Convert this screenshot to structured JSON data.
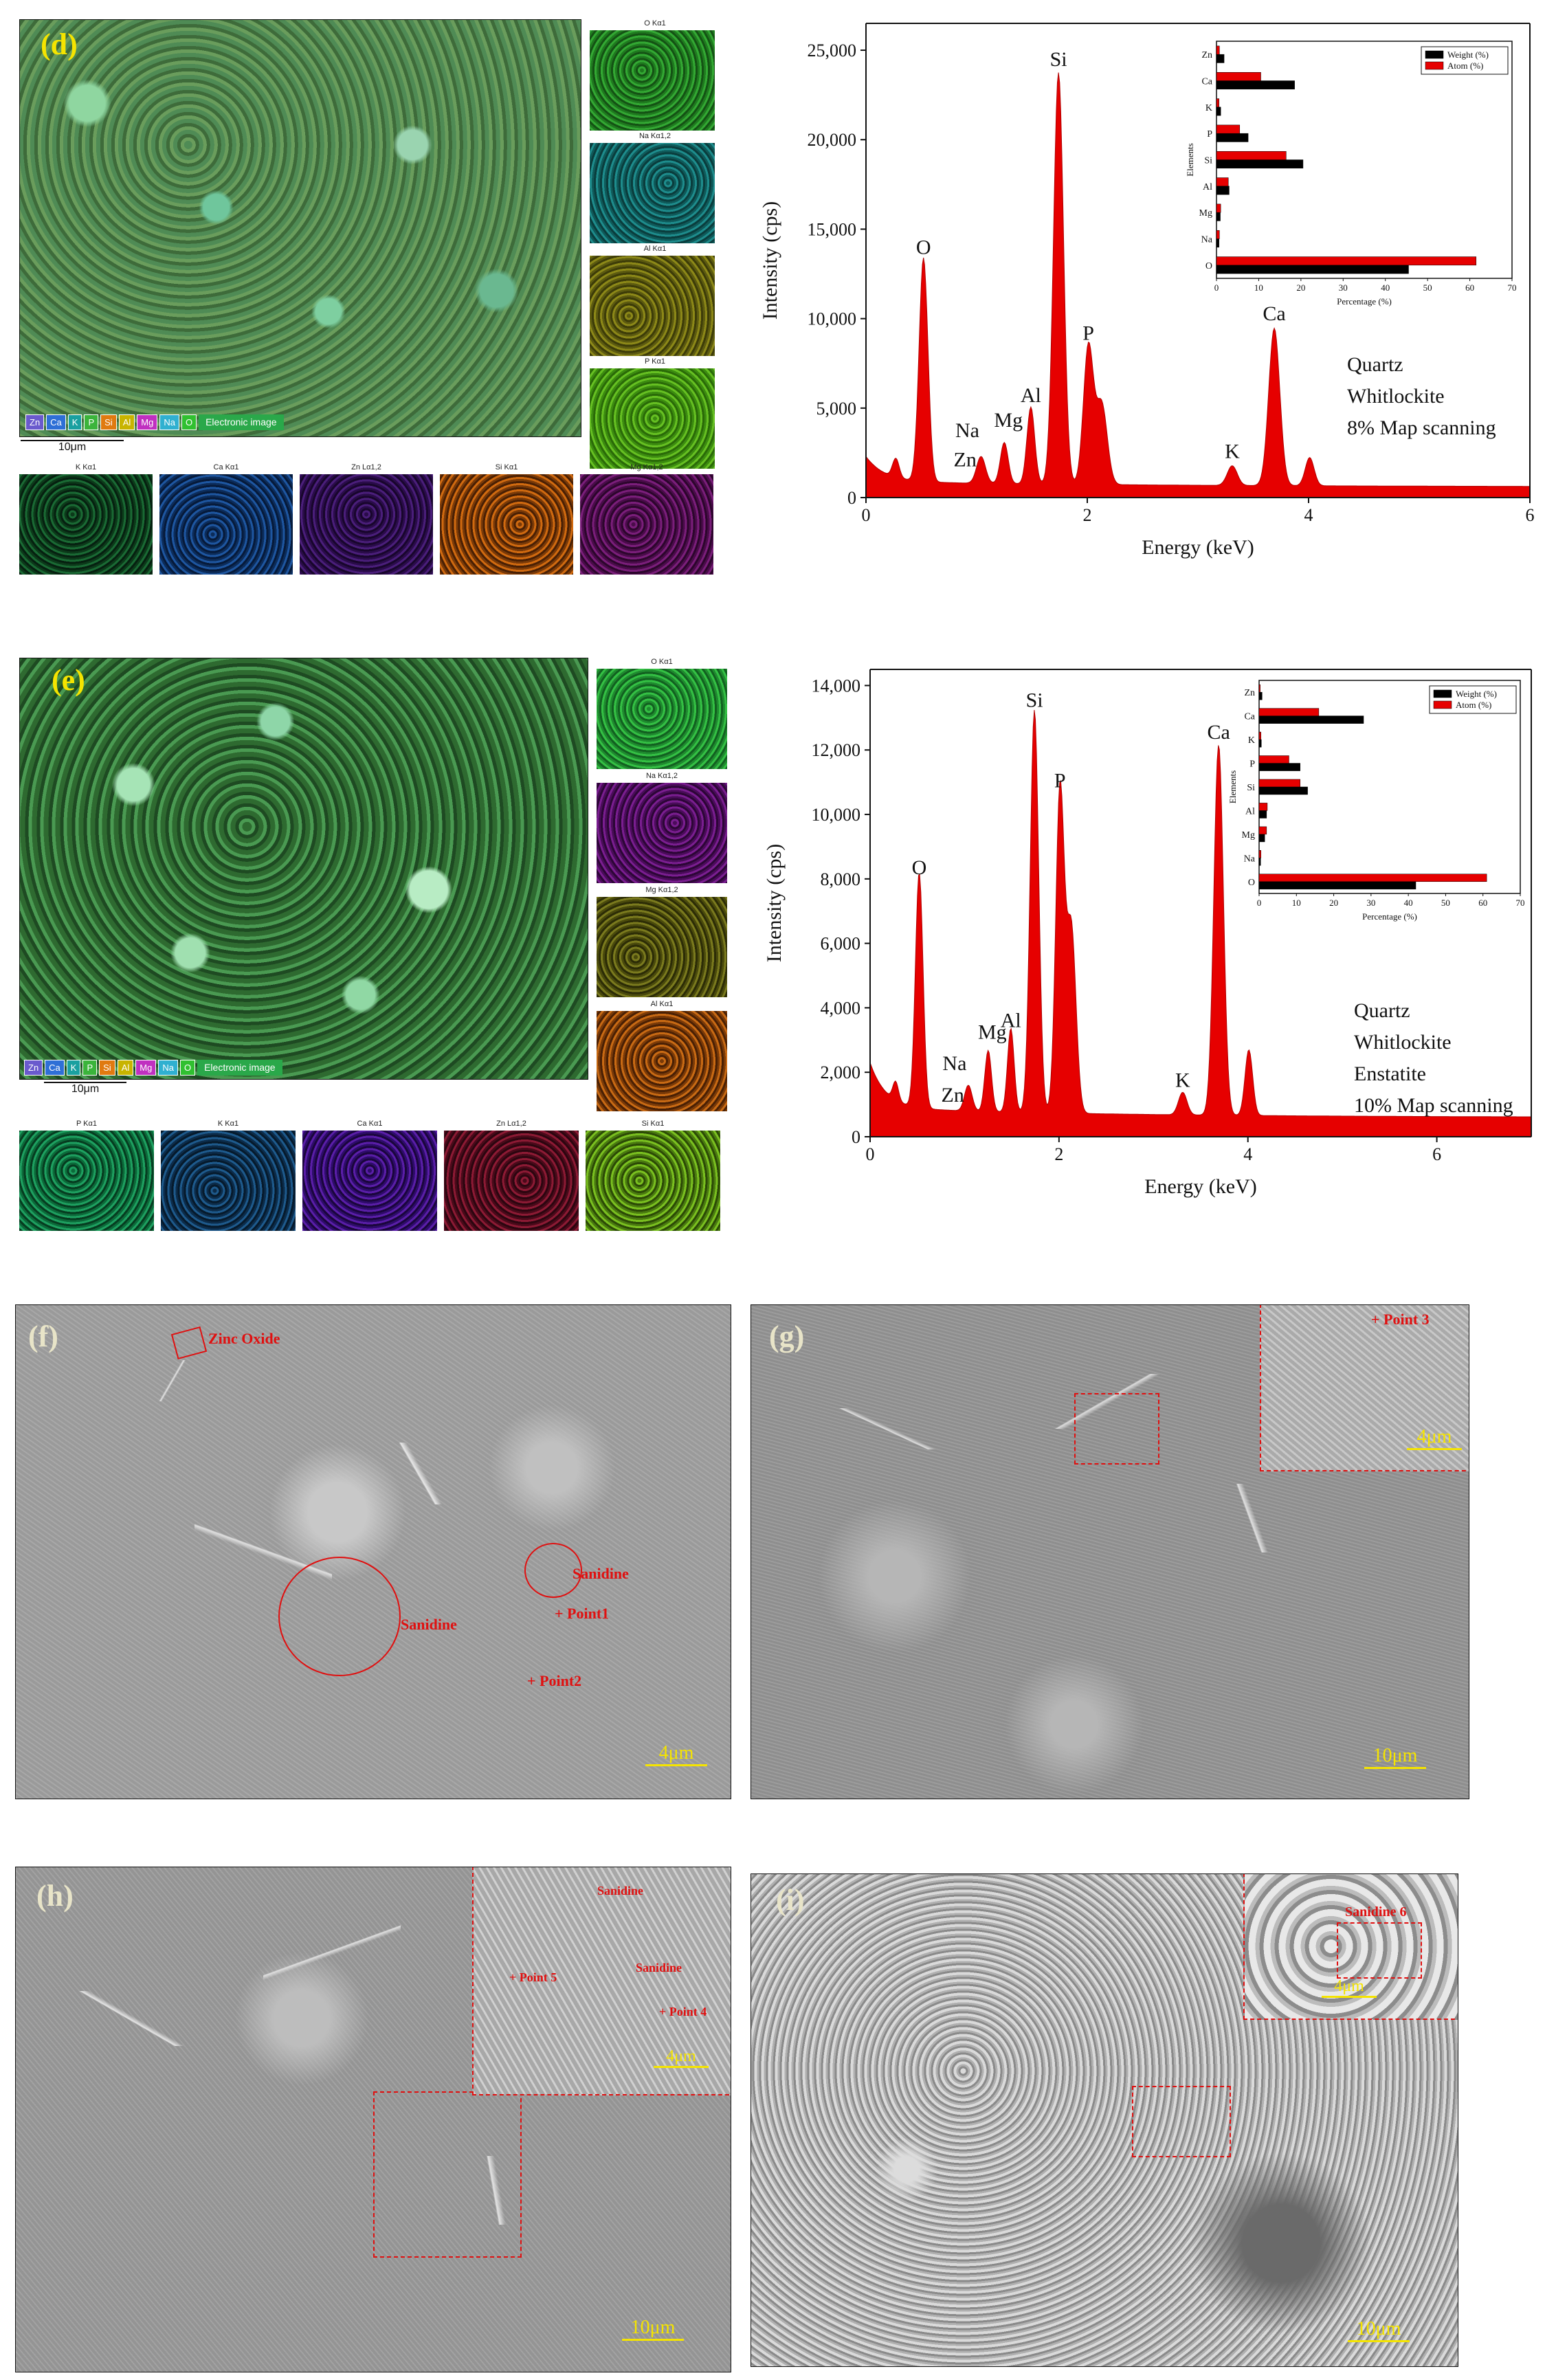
{
  "panel_d": {
    "letter": "(d)",
    "scale": "10μm",
    "legend": [
      "Zn",
      "Ca",
      "K",
      "P",
      "Si",
      "Al",
      "Mg",
      "Na",
      "O"
    ],
    "electronic_image": "Electronic image",
    "maps_right": [
      "O Kα1",
      "Na Kα1,2",
      "Al Kα1",
      "P Kα1"
    ],
    "maps_bottom": [
      "K Kα1",
      "Ca Kα1",
      "Zn Lα1,2",
      "Si Kα1",
      "Mg Kα1,2"
    ],
    "map_scale": "10μm"
  },
  "panel_e": {
    "letter": "(e)",
    "scale": "10μm",
    "legend": [
      "Zn",
      "Ca",
      "K",
      "P",
      "Si",
      "Al",
      "Mg",
      "Na",
      "O"
    ],
    "electronic_image": "Electronic image",
    "maps_right": [
      "O Kα1",
      "Na Kα1,2",
      "Mg Kα1,2",
      "Al Kα1"
    ],
    "maps_bottom": [
      "P Kα1",
      "K Kα1",
      "Ca Kα1",
      "Zn Lα1,2",
      "Si Kα1"
    ],
    "map_scale": "10μm"
  },
  "panel_f": {
    "letter": "(f)",
    "labels": [
      "Zinc Oxide",
      "Sanidine",
      "Sanidine",
      "+ Point1",
      "+ Point2"
    ],
    "scale": "4μm"
  },
  "panel_g": {
    "letter": "(g)",
    "labels": [
      "+ Point 3"
    ],
    "scale_inset": "4μm",
    "scale": "10μm"
  },
  "panel_h": {
    "letter": "(h)",
    "labels": [
      "Sanidine",
      "Sanidine",
      "+ Point 5",
      "+ Point 4"
    ],
    "scale_inset": "4μm",
    "scale": "10μm"
  },
  "panel_i": {
    "letter": "(i)",
    "labels": [
      "Sanidine 6"
    ],
    "scale_inset": "4μm",
    "scale": "10μm"
  },
  "chart_data": [
    {
      "type": "area",
      "xlabel": "Energy (keV)",
      "ylabel": "Intensity (cps)",
      "xlim": [
        0,
        6
      ],
      "ylim": [
        0,
        26500
      ],
      "xticks": [
        "0",
        "2",
        "4",
        "6"
      ],
      "yticks": [
        "0",
        "5,000",
        "10,000",
        "15,000",
        "20,000",
        "25,000"
      ],
      "peaks": [
        {
          "label": "O",
          "x": 0.52,
          "y": 13000
        },
        {
          "label": "Na",
          "x": 1.04,
          "y": 2000
        },
        {
          "label": "Zn",
          "x": 1.02,
          "y": 1600
        },
        {
          "label": "Mg",
          "x": 1.25,
          "y": 2800
        },
        {
          "label": "Al",
          "x": 1.49,
          "y": 4800
        },
        {
          "label": "Si",
          "x": 1.74,
          "y": 23500
        },
        {
          "label": "P",
          "x": 2.01,
          "y": 8200
        },
        {
          "label": "K",
          "x": 3.31,
          "y": 1600
        },
        {
          "label": "Ca",
          "x": 3.69,
          "y": 9300
        }
      ],
      "annotations": [
        "Quartz",
        "Whitlockite",
        "8%  Map scanning"
      ],
      "inset": {
        "type": "bar",
        "categories": [
          "O",
          "Na",
          "Mg",
          "Al",
          "Si",
          "P",
          "K",
          "Ca",
          "Zn"
        ],
        "series": [
          {
            "name": "Weight (%)",
            "values": [
              45.5,
              0.6,
              0.9,
              3.0,
              20.5,
              7.5,
              1.0,
              18.5,
              1.8
            ]
          },
          {
            "name": "Atom (%)",
            "values": [
              61.5,
              0.7,
              1.0,
              2.8,
              16.5,
              5.5,
              0.6,
              10.5,
              0.7
            ]
          }
        ],
        "xlabel": "Percentage (%)",
        "ylabel": "Elements",
        "xlim": [
          0,
          70
        ],
        "xticks": [
          "0",
          "10",
          "20",
          "30",
          "40",
          "50",
          "60",
          "70"
        ],
        "colors": {
          "Weight (%)": "#000000",
          "Atom (%)": "#e60000"
        }
      }
    },
    {
      "type": "area",
      "xlabel": "Energy (keV)",
      "ylabel": "Intensity (cps)",
      "xlim": [
        0,
        7
      ],
      "ylim": [
        0,
        14500
      ],
      "xticks": [
        "0",
        "2",
        "4",
        "6"
      ],
      "yticks": [
        "0",
        "2,000",
        "4,000",
        "6,000",
        "8,000",
        "10,000",
        "12,000",
        "14,000"
      ],
      "peaks": [
        {
          "label": "O",
          "x": 0.52,
          "y": 7800
        },
        {
          "label": "Na",
          "x": 1.04,
          "y": 1300
        },
        {
          "label": "Zn",
          "x": 1.02,
          "y": 1000
        },
        {
          "label": "Mg",
          "x": 1.25,
          "y": 2400
        },
        {
          "label": "Al",
          "x": 1.49,
          "y": 3100
        },
        {
          "label": "Si",
          "x": 1.74,
          "y": 13000
        },
        {
          "label": "P",
          "x": 2.01,
          "y": 10500
        },
        {
          "label": "K",
          "x": 3.31,
          "y": 1200
        },
        {
          "label": "Ca",
          "x": 3.69,
          "y": 12000
        }
      ],
      "annotations": [
        "Quartz",
        "Whitlockite",
        "Enstatite",
        "10%  Map scanning"
      ],
      "inset": {
        "type": "bar",
        "categories": [
          "O",
          "Na",
          "Mg",
          "Al",
          "Si",
          "P",
          "K",
          "Ca",
          "Zn"
        ],
        "series": [
          {
            "name": "Weight (%)",
            "values": [
              42,
              0.4,
              1.5,
              2.0,
              13,
              11,
              0.6,
              28,
              0.8
            ]
          },
          {
            "name": "Atom (%)",
            "values": [
              61,
              0.5,
              2.0,
              2.2,
              11,
              8,
              0.5,
              16,
              0.3
            ]
          }
        ],
        "xlabel": "Percentage (%)",
        "ylabel": "Elements",
        "xlim": [
          0,
          70
        ],
        "xticks": [
          "0",
          "10",
          "20",
          "30",
          "40",
          "50",
          "60",
          "70"
        ],
        "colors": {
          "Weight (%)": "#000000",
          "Atom (%)": "#e60000"
        }
      }
    }
  ]
}
